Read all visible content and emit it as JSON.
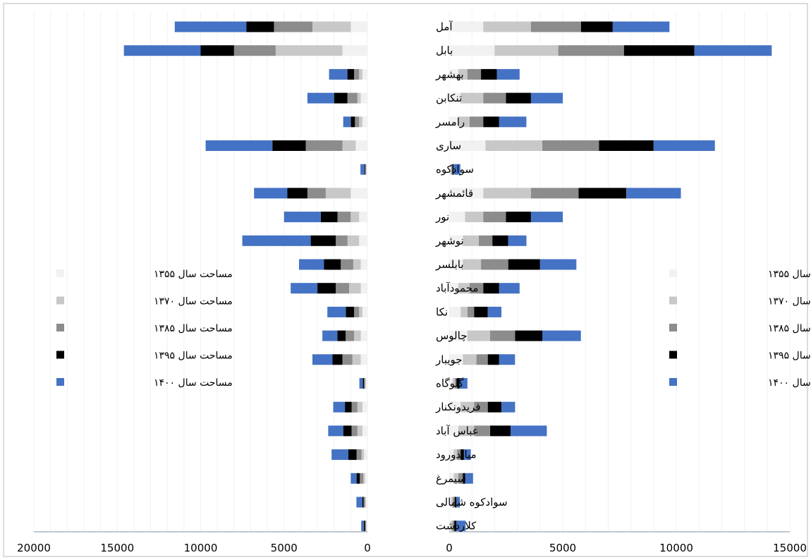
{
  "chart_data": [
    {
      "type": "bar",
      "orientation": "horizontal",
      "stacked": true,
      "x_direction": "reversed",
      "xlim": [
        0,
        20000
      ],
      "x_ticks": [
        "20000",
        "15000",
        "10000",
        "5000",
        "0"
      ],
      "categories": [
        "آمل",
        "بابل",
        "بهشهر",
        "تنکابن",
        "رامسر",
        "ساری",
        "سوادکوه",
        "قائمشهر",
        "نور",
        "نوشهر",
        "بابلسر",
        "محمودآباد",
        "نکا",
        "چالوس",
        "جویبار",
        "گلوگاه",
        "فریدونکنار",
        "عباس آباد",
        "میاندورود",
        "سیمرغ",
        "سوادکوه شمالی",
        "کلاردشت"
      ],
      "series": [
        {
          "name": "مساحت سال ۱۳۵۵",
          "color": "#f1f1f1",
          "values": [
            1000,
            1500,
            300,
            400,
            300,
            700,
            50,
            1000,
            500,
            500,
            400,
            400,
            300,
            400,
            400,
            100,
            300,
            300,
            200,
            150,
            100,
            50
          ]
        },
        {
          "name": "مساحت سال ۱۳۷۰",
          "color": "#c8c8c8",
          "values": [
            2300,
            4000,
            200,
            200,
            200,
            800,
            40,
            1500,
            500,
            700,
            450,
            700,
            200,
            400,
            500,
            50,
            300,
            300,
            150,
            100,
            50,
            40
          ]
        },
        {
          "name": "مساحت سال ۱۳۸۵",
          "color": "#8c8c8c",
          "values": [
            2300,
            2500,
            300,
            600,
            250,
            2200,
            40,
            1100,
            800,
            700,
            750,
            800,
            300,
            500,
            600,
            50,
            350,
            350,
            300,
            200,
            80,
            50
          ]
        },
        {
          "name": "مساحت سال ۱۳۹۵",
          "color": "#000000",
          "values": [
            1650,
            2000,
            400,
            800,
            250,
            2000,
            40,
            1200,
            1000,
            1500,
            1000,
            1100,
            500,
            500,
            600,
            80,
            400,
            500,
            500,
            200,
            80,
            80
          ]
        },
        {
          "name": "مساحت سال ۱۴۰۰",
          "color": "#4472c4",
          "values": [
            4300,
            4600,
            1100,
            1600,
            450,
            4000,
            250,
            2000,
            2200,
            4100,
            1500,
            1600,
            1100,
            900,
            1200,
            200,
            700,
            900,
            1000,
            350,
            350,
            150
          ]
        }
      ]
    },
    {
      "type": "bar",
      "orientation": "horizontal",
      "stacked": true,
      "xlim": [
        0,
        15000
      ],
      "x_ticks": [
        "0",
        "5000",
        "10000",
        "15000"
      ],
      "categories": [
        "آمل",
        "بابل",
        "بهشهر",
        "تنکابن",
        "رامسر",
        "ساری",
        "سوادکوه",
        "قائمشهر",
        "نور",
        "نوشهر",
        "بابلسر",
        "محمودآباد",
        "نکا",
        "چالوس",
        "جویبار",
        "گلوگاه",
        "فریدونکنار",
        "عباس آباد",
        "میاندورود",
        "سیمرغ",
        "سوادکوه شمالی",
        "کلاردشت"
      ],
      "series": [
        {
          "name": "مساحت سال ۱۳۵۵",
          "color": "#f1f1f1",
          "values": [
            1500,
            2000,
            400,
            500,
            400,
            1600,
            60,
            1500,
            700,
            600,
            600,
            400,
            500,
            800,
            600,
            150,
            500,
            400,
            200,
            200,
            80,
            80
          ]
        },
        {
          "name": "مساحت سال ۱۳۷۰",
          "color": "#c8c8c8",
          "values": [
            2100,
            2800,
            400,
            1000,
            500,
            2500,
            40,
            2100,
            800,
            700,
            800,
            500,
            300,
            1000,
            600,
            100,
            600,
            700,
            150,
            200,
            80,
            70
          ]
        },
        {
          "name": "مساحت سال ۱۳۸۵",
          "color": "#8c8c8c",
          "values": [
            2200,
            2900,
            600,
            1000,
            600,
            2500,
            40,
            2100,
            1000,
            600,
            1200,
            600,
            300,
            1100,
            500,
            100,
            600,
            700,
            150,
            200,
            80,
            70
          ]
        },
        {
          "name": "مساحت سال ۱۳۹۵",
          "color": "#000000",
          "values": [
            1400,
            3100,
            700,
            1100,
            700,
            2400,
            50,
            2100,
            1100,
            700,
            1400,
            700,
            600,
            1200,
            500,
            100,
            600,
            900,
            150,
            100,
            80,
            100
          ]
        },
        {
          "name": "مساحت سال ۱۴۰۰",
          "color": "#4472c4",
          "values": [
            2500,
            3400,
            1000,
            1400,
            1200,
            2700,
            300,
            2400,
            1400,
            800,
            1600,
            900,
            600,
            1700,
            700,
            350,
            600,
            1600,
            300,
            350,
            150,
            400
          ]
        }
      ]
    }
  ]
}
